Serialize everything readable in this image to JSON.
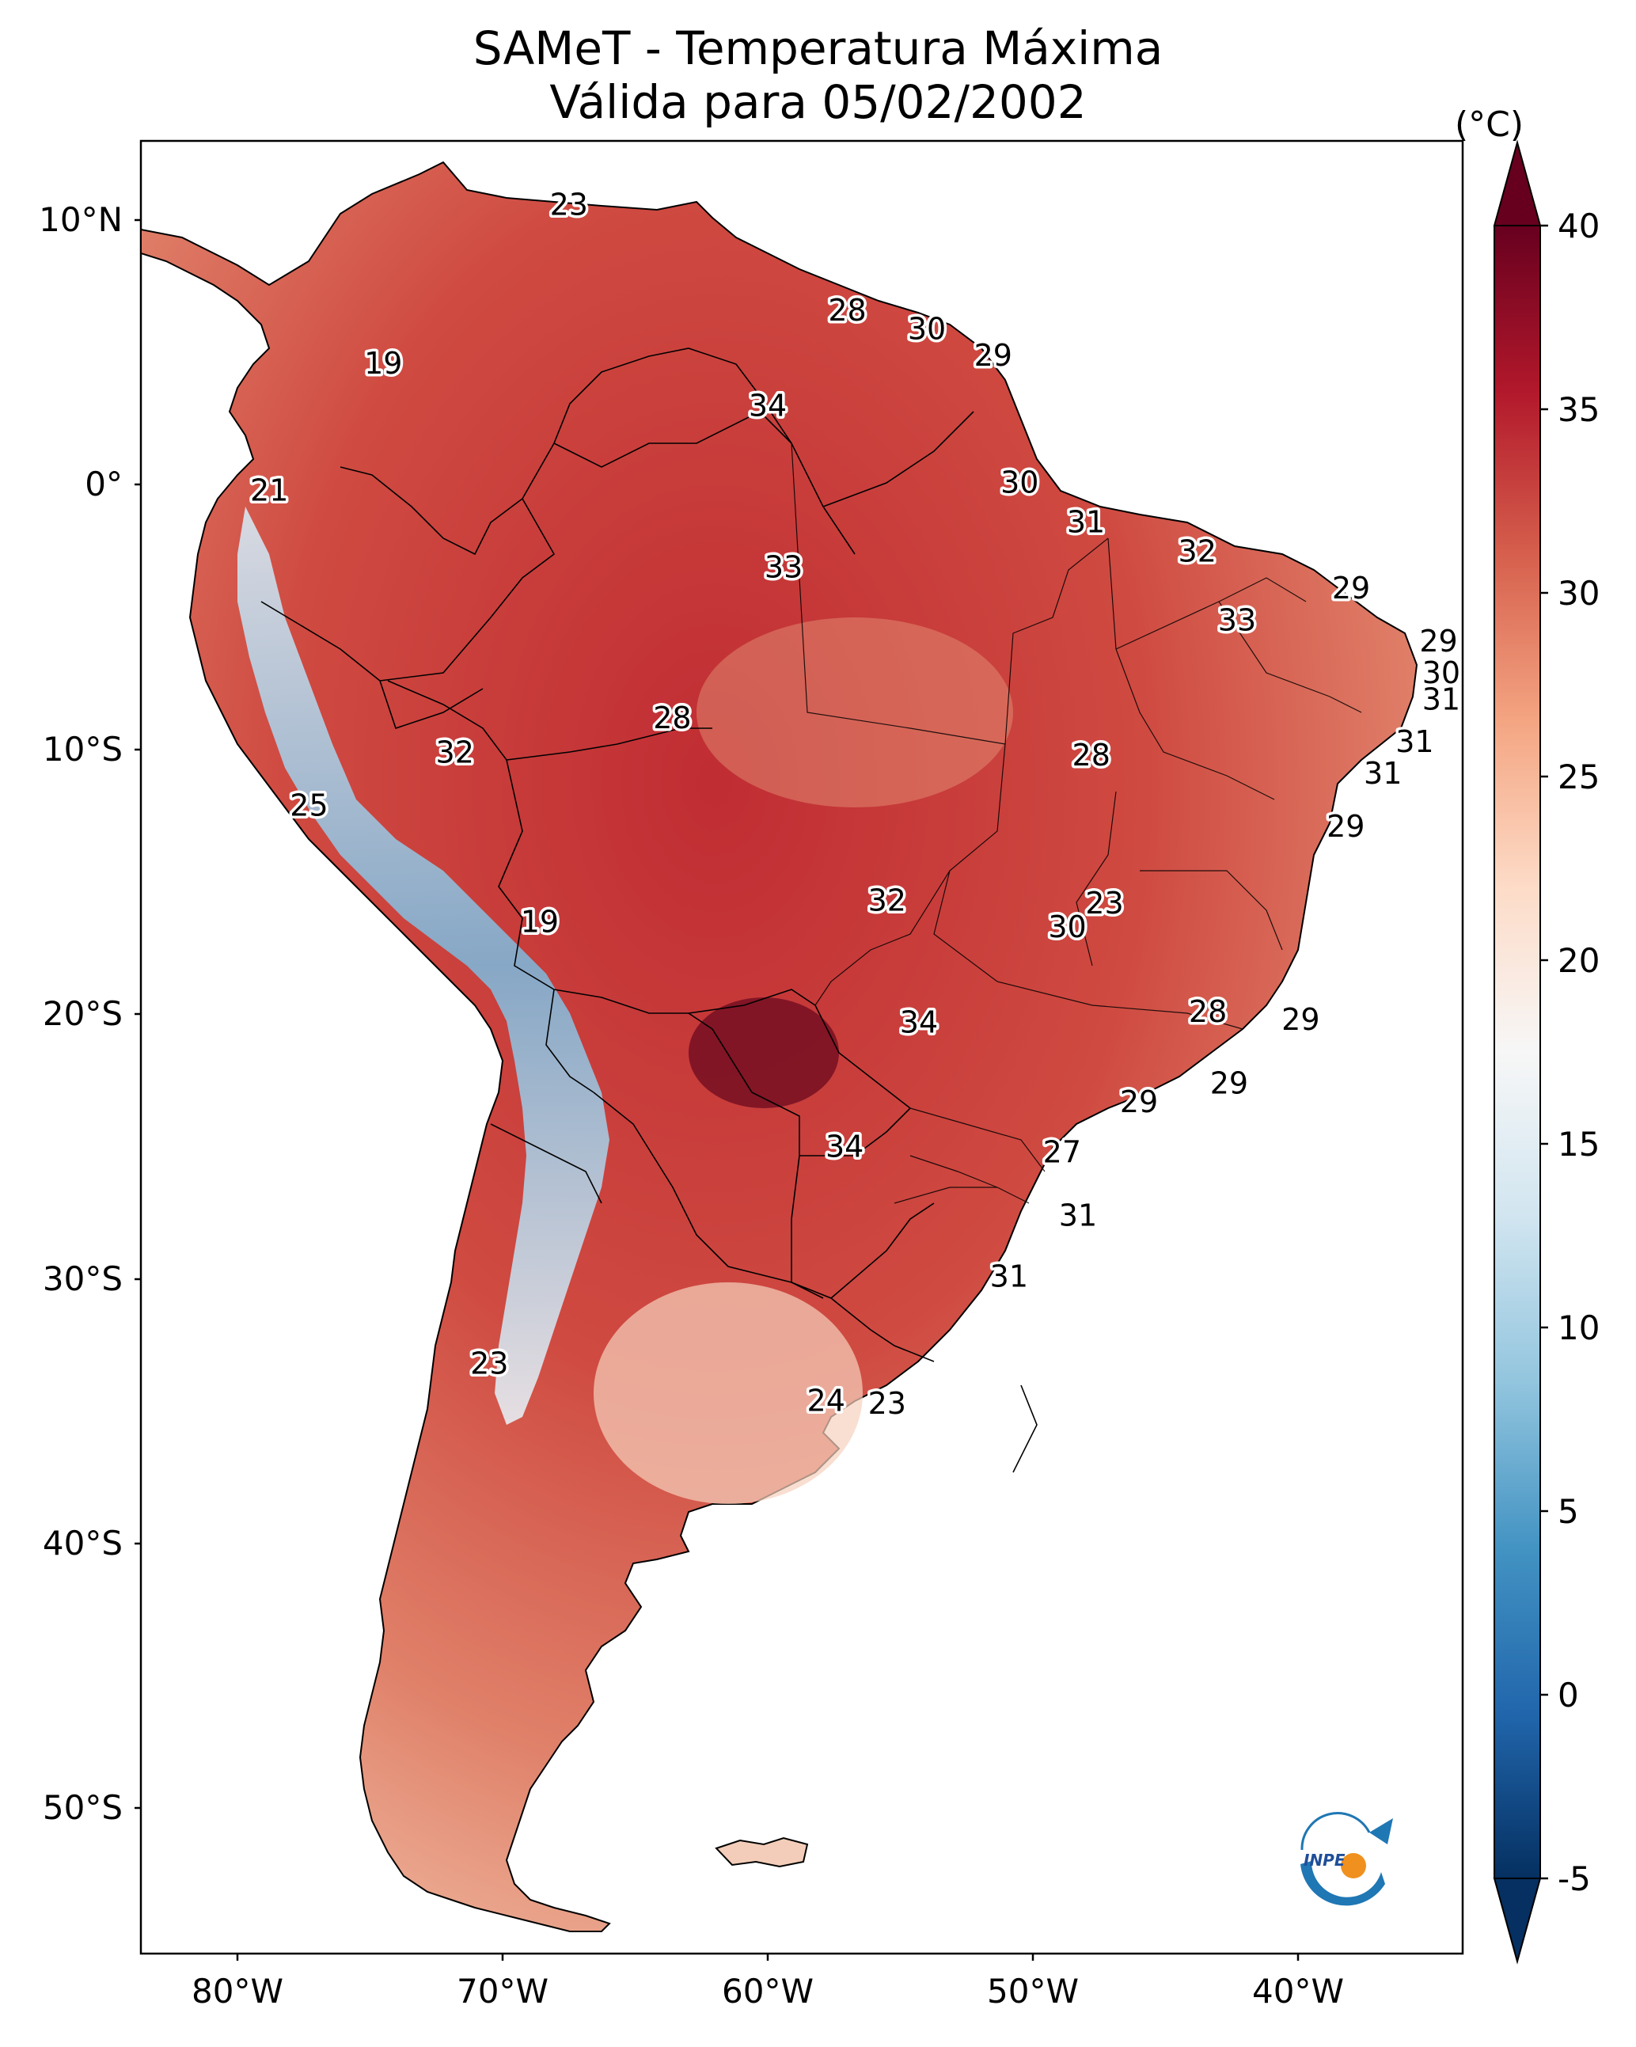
{
  "title_line1": "SAMeT - Temperatura Máxima",
  "title_line2": "Válida para 05/02/2002",
  "colorbar": {
    "unit": "(°C)",
    "min": -5,
    "max": 40,
    "ticks": [
      "40",
      "35",
      "30",
      "25",
      "20",
      "15",
      "10",
      "5",
      "0",
      "-5"
    ],
    "colors": [
      "#053061",
      "#2166ac",
      "#4393c3",
      "#92c5de",
      "#d1e5f0",
      "#f7f7f7",
      "#fddbc7",
      "#f4a582",
      "#d6604d",
      "#b2182b",
      "#67001f"
    ]
  },
  "axes": {
    "lat_labels": [
      "10°N",
      "0°",
      "10°S",
      "20°S",
      "30°S",
      "40°S",
      "50°S"
    ],
    "lon_labels": [
      "80°W",
      "70°W",
      "60°W",
      "50°W",
      "40°W"
    ]
  },
  "point_labels": [
    {
      "value": "23",
      "lon": -67.5,
      "lat": 10.5
    },
    {
      "value": "28",
      "lon": -57.0,
      "lat": 6.5
    },
    {
      "value": "30",
      "lon": -54.0,
      "lat": 5.8
    },
    {
      "value": "29",
      "lon": -51.5,
      "lat": 4.8
    },
    {
      "value": "19",
      "lon": -74.5,
      "lat": 4.5
    },
    {
      "value": "34",
      "lon": -60.0,
      "lat": 2.9
    },
    {
      "value": "21",
      "lon": -78.8,
      "lat": -0.3
    },
    {
      "value": "30",
      "lon": -50.5,
      "lat": 0.0
    },
    {
      "value": "31",
      "lon": -48.0,
      "lat": -1.5
    },
    {
      "value": "32",
      "lon": -43.8,
      "lat": -2.6
    },
    {
      "value": "33",
      "lon": -59.4,
      "lat": -3.2
    },
    {
      "value": "29",
      "lon": -38.0,
      "lat": -4.0
    },
    {
      "value": "33",
      "lon": -42.3,
      "lat": -5.2
    },
    {
      "value": "29",
      "lon": -34.7,
      "lat": -6.0
    },
    {
      "value": "30",
      "lon": -34.6,
      "lat": -7.2
    },
    {
      "value": "31",
      "lon": -34.6,
      "lat": -8.2
    },
    {
      "value": "28",
      "lon": -63.6,
      "lat": -8.9
    },
    {
      "value": "32",
      "lon": -71.8,
      "lat": -10.2
    },
    {
      "value": "31",
      "lon": -35.6,
      "lat": -9.8
    },
    {
      "value": "28",
      "lon": -47.8,
      "lat": -10.3
    },
    {
      "value": "31",
      "lon": -36.8,
      "lat": -11.0
    },
    {
      "value": "29",
      "lon": -38.2,
      "lat": -13.0
    },
    {
      "value": "25",
      "lon": -77.3,
      "lat": -12.2
    },
    {
      "value": "32",
      "lon": -55.5,
      "lat": -15.8
    },
    {
      "value": "23",
      "lon": -47.3,
      "lat": -15.9
    },
    {
      "value": "30",
      "lon": -48.7,
      "lat": -16.8
    },
    {
      "value": "19",
      "lon": -68.6,
      "lat": -16.6
    },
    {
      "value": "28",
      "lon": -43.4,
      "lat": -20.0
    },
    {
      "value": "34",
      "lon": -54.3,
      "lat": -20.4
    },
    {
      "value": "29",
      "lon": -39.9,
      "lat": -20.3
    },
    {
      "value": "29",
      "lon": -42.6,
      "lat": -22.7
    },
    {
      "value": "29",
      "lon": -46.0,
      "lat": -23.4
    },
    {
      "value": "34",
      "lon": -57.1,
      "lat": -25.1
    },
    {
      "value": "27",
      "lon": -48.9,
      "lat": -25.3
    },
    {
      "value": "31",
      "lon": -48.3,
      "lat": -27.7
    },
    {
      "value": "31",
      "lon": -50.9,
      "lat": -30.0
    },
    {
      "value": "23",
      "lon": -70.5,
      "lat": -33.3
    },
    {
      "value": "24",
      "lon": -57.8,
      "lat": -34.7
    },
    {
      "value": "23",
      "lon": -55.5,
      "lat": -34.8
    }
  ],
  "logo": {
    "text": "INPE"
  }
}
